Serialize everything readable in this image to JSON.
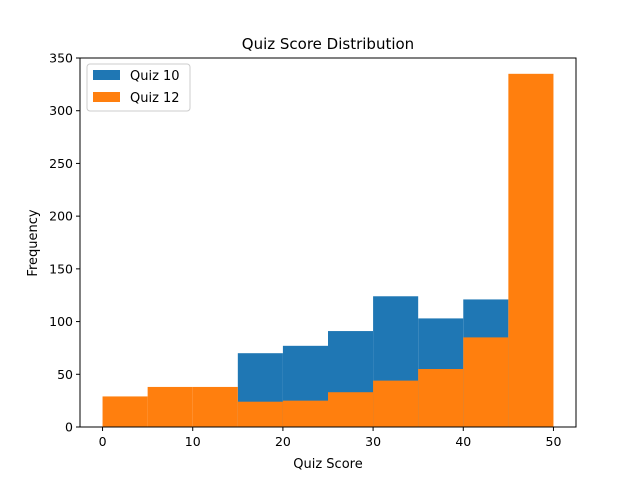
{
  "chart_data": {
    "type": "bar",
    "title": "Quiz Score Distribution",
    "xlabel": "Quiz Score",
    "ylabel": "Frequency",
    "xlim": [
      -2.5,
      52.5
    ],
    "ylim": [
      0,
      350
    ],
    "xticks": [
      0,
      10,
      20,
      30,
      40,
      50
    ],
    "yticks": [
      0,
      50,
      100,
      150,
      200,
      250,
      300,
      350
    ],
    "legend_position": "top-left",
    "grid": false,
    "series": [
      {
        "name": "Quiz 10",
        "color": "#1f77b4",
        "bins": [
          {
            "x0": 15,
            "x1": 20,
            "value": 70
          },
          {
            "x0": 20,
            "x1": 25,
            "value": 77
          },
          {
            "x0": 25,
            "x1": 30,
            "value": 91
          },
          {
            "x0": 30,
            "x1": 35,
            "value": 124
          },
          {
            "x0": 35,
            "x1": 40,
            "value": 103
          },
          {
            "x0": 40,
            "x1": 45,
            "value": 121
          }
        ]
      },
      {
        "name": "Quiz 12",
        "color": "#ff7f0e",
        "bins": [
          {
            "x0": 0,
            "x1": 5,
            "value": 29
          },
          {
            "x0": 5,
            "x1": 10,
            "value": 38
          },
          {
            "x0": 10,
            "x1": 15,
            "value": 38
          },
          {
            "x0": 15,
            "x1": 20,
            "value": 24
          },
          {
            "x0": 20,
            "x1": 25,
            "value": 25
          },
          {
            "x0": 25,
            "x1": 30,
            "value": 33
          },
          {
            "x0": 30,
            "x1": 35,
            "value": 44
          },
          {
            "x0": 35,
            "x1": 40,
            "value": 55
          },
          {
            "x0": 40,
            "x1": 45,
            "value": 85
          },
          {
            "x0": 45,
            "x1": 50,
            "value": 335
          }
        ]
      }
    ]
  }
}
